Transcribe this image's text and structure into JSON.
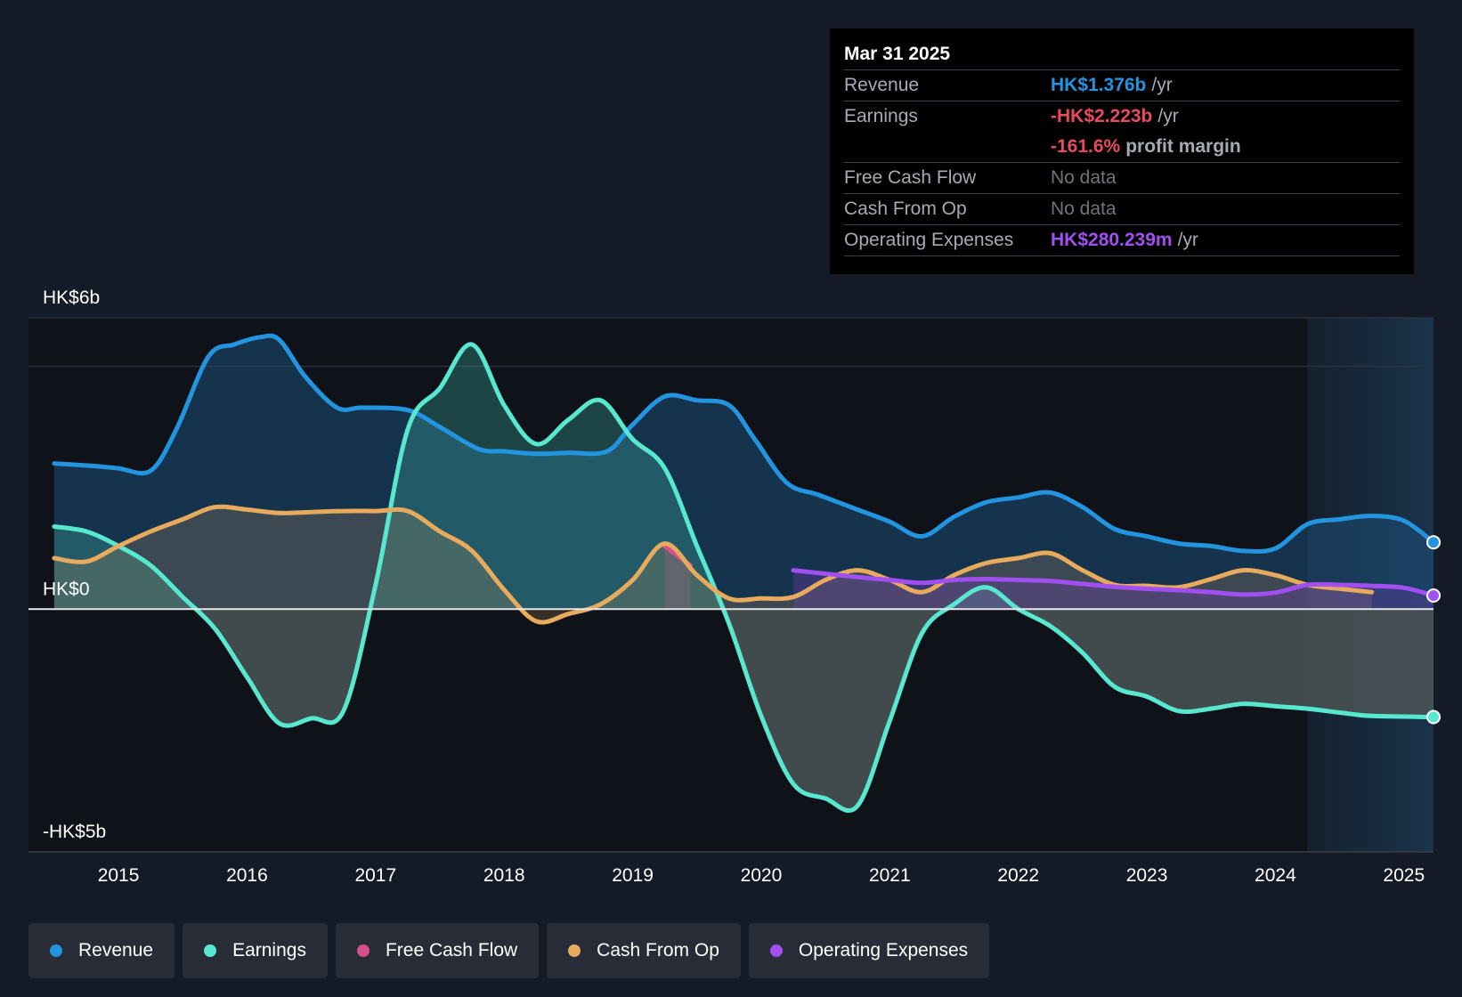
{
  "chart_data": {
    "type": "area",
    "currency": "HK$",
    "y_axis": {
      "top_label": "HK$6b",
      "zero_label": "HK$0",
      "bottom_label": "-HK$5b",
      "ylim": [
        -5,
        6
      ],
      "gridlines": [
        6,
        5,
        0
      ]
    },
    "x_axis": {
      "ticks": [
        "2015",
        "2016",
        "2017",
        "2018",
        "2019",
        "2020",
        "2021",
        "2022",
        "2023",
        "2024",
        "2025"
      ],
      "xlim": [
        2014.3,
        2025.23
      ]
    },
    "forecast_start": 2024.25,
    "series": [
      {
        "name": "Revenue",
        "color": "#2394df",
        "points": [
          [
            2014.5,
            3.0
          ],
          [
            2014.8,
            2.95
          ],
          [
            2015.0,
            2.9
          ],
          [
            2015.25,
            2.85
          ],
          [
            2015.45,
            3.7
          ],
          [
            2015.7,
            5.2
          ],
          [
            2015.9,
            5.45
          ],
          [
            2016.1,
            5.6
          ],
          [
            2016.25,
            5.55
          ],
          [
            2016.45,
            4.8
          ],
          [
            2016.7,
            4.15
          ],
          [
            2016.9,
            4.15
          ],
          [
            2017.25,
            4.1
          ],
          [
            2017.5,
            3.75
          ],
          [
            2017.8,
            3.3
          ],
          [
            2018.0,
            3.25
          ],
          [
            2018.25,
            3.2
          ],
          [
            2018.5,
            3.22
          ],
          [
            2018.8,
            3.25
          ],
          [
            2019.0,
            3.8
          ],
          [
            2019.25,
            4.38
          ],
          [
            2019.5,
            4.3
          ],
          [
            2019.75,
            4.2
          ],
          [
            2019.95,
            3.5
          ],
          [
            2020.2,
            2.6
          ],
          [
            2020.45,
            2.35
          ],
          [
            2020.75,
            2.05
          ],
          [
            2021.0,
            1.8
          ],
          [
            2021.25,
            1.5
          ],
          [
            2021.5,
            1.9
          ],
          [
            2021.75,
            2.2
          ],
          [
            2022.0,
            2.3
          ],
          [
            2022.25,
            2.4
          ],
          [
            2022.5,
            2.1
          ],
          [
            2022.75,
            1.65
          ],
          [
            2023.0,
            1.5
          ],
          [
            2023.25,
            1.35
          ],
          [
            2023.5,
            1.3
          ],
          [
            2023.75,
            1.2
          ],
          [
            2024.0,
            1.25
          ],
          [
            2024.25,
            1.75
          ],
          [
            2024.5,
            1.85
          ],
          [
            2024.75,
            1.92
          ],
          [
            2025.0,
            1.82
          ],
          [
            2025.23,
            1.376
          ]
        ]
      },
      {
        "name": "Earnings",
        "color": "#58e7cf",
        "points": [
          [
            2014.5,
            1.7
          ],
          [
            2014.75,
            1.6
          ],
          [
            2015.0,
            1.3
          ],
          [
            2015.25,
            0.9
          ],
          [
            2015.5,
            0.25
          ],
          [
            2015.75,
            -0.4
          ],
          [
            2016.0,
            -1.4
          ],
          [
            2016.25,
            -2.35
          ],
          [
            2016.5,
            -2.25
          ],
          [
            2016.75,
            -2.1
          ],
          [
            2017.0,
            0.5
          ],
          [
            2017.25,
            3.7
          ],
          [
            2017.5,
            4.55
          ],
          [
            2017.75,
            5.45
          ],
          [
            2018.0,
            4.2
          ],
          [
            2018.25,
            3.4
          ],
          [
            2018.5,
            3.9
          ],
          [
            2018.75,
            4.3
          ],
          [
            2019.0,
            3.5
          ],
          [
            2019.25,
            2.9
          ],
          [
            2019.5,
            1.3
          ],
          [
            2019.75,
            -0.3
          ],
          [
            2020.0,
            -2.2
          ],
          [
            2020.25,
            -3.6
          ],
          [
            2020.5,
            -3.9
          ],
          [
            2020.75,
            -4.05
          ],
          [
            2021.0,
            -2.3
          ],
          [
            2021.25,
            -0.5
          ],
          [
            2021.5,
            0.1
          ],
          [
            2021.75,
            0.45
          ],
          [
            2022.0,
            0.0
          ],
          [
            2022.25,
            -0.35
          ],
          [
            2022.5,
            -0.9
          ],
          [
            2022.75,
            -1.6
          ],
          [
            2023.0,
            -1.8
          ],
          [
            2023.25,
            -2.1
          ],
          [
            2023.5,
            -2.05
          ],
          [
            2023.75,
            -1.95
          ],
          [
            2024.0,
            -2.0
          ],
          [
            2024.25,
            -2.05
          ],
          [
            2024.5,
            -2.13
          ],
          [
            2024.75,
            -2.2
          ],
          [
            2025.23,
            -2.223
          ]
        ]
      },
      {
        "name": "Free Cash Flow",
        "color": "#d94f8c",
        "points": [
          [
            2019.25,
            1.3
          ],
          [
            2019.45,
            0.9
          ]
        ]
      },
      {
        "name": "Cash From Op",
        "color": "#e8aa5c",
        "points": [
          [
            2014.5,
            1.05
          ],
          [
            2014.75,
            0.98
          ],
          [
            2015.0,
            1.3
          ],
          [
            2015.25,
            1.6
          ],
          [
            2015.5,
            1.85
          ],
          [
            2015.75,
            2.1
          ],
          [
            2016.0,
            2.05
          ],
          [
            2016.25,
            1.98
          ],
          [
            2016.5,
            2.0
          ],
          [
            2016.75,
            2.02
          ],
          [
            2017.0,
            2.02
          ],
          [
            2017.25,
            2.02
          ],
          [
            2017.5,
            1.6
          ],
          [
            2017.75,
            1.2
          ],
          [
            2018.0,
            0.4
          ],
          [
            2018.25,
            -0.25
          ],
          [
            2018.5,
            -0.1
          ],
          [
            2018.75,
            0.1
          ],
          [
            2019.0,
            0.6
          ],
          [
            2019.25,
            1.35
          ],
          [
            2019.5,
            0.7
          ],
          [
            2019.75,
            0.22
          ],
          [
            2020.0,
            0.22
          ],
          [
            2020.25,
            0.25
          ],
          [
            2020.5,
            0.6
          ],
          [
            2020.75,
            0.8
          ],
          [
            2021.0,
            0.6
          ],
          [
            2021.25,
            0.35
          ],
          [
            2021.5,
            0.7
          ],
          [
            2021.75,
            0.95
          ],
          [
            2022.0,
            1.05
          ],
          [
            2022.25,
            1.15
          ],
          [
            2022.5,
            0.8
          ],
          [
            2022.75,
            0.5
          ],
          [
            2023.0,
            0.48
          ],
          [
            2023.25,
            0.45
          ],
          [
            2023.5,
            0.62
          ],
          [
            2023.75,
            0.8
          ],
          [
            2024.0,
            0.7
          ],
          [
            2024.25,
            0.5
          ],
          [
            2024.5,
            0.42
          ],
          [
            2024.75,
            0.35
          ]
        ]
      },
      {
        "name": "Operating Expenses",
        "color": "#a14ff0",
        "points": [
          [
            2020.25,
            0.8
          ],
          [
            2020.5,
            0.73
          ],
          [
            2020.75,
            0.66
          ],
          [
            2021.0,
            0.6
          ],
          [
            2021.25,
            0.54
          ],
          [
            2021.5,
            0.6
          ],
          [
            2021.75,
            0.62
          ],
          [
            2022.0,
            0.6
          ],
          [
            2022.25,
            0.58
          ],
          [
            2022.5,
            0.52
          ],
          [
            2022.75,
            0.46
          ],
          [
            2023.0,
            0.42
          ],
          [
            2023.25,
            0.39
          ],
          [
            2023.5,
            0.35
          ],
          [
            2023.75,
            0.3
          ],
          [
            2024.0,
            0.34
          ],
          [
            2024.25,
            0.5
          ],
          [
            2024.5,
            0.5
          ],
          [
            2024.75,
            0.48
          ],
          [
            2025.0,
            0.44
          ],
          [
            2025.23,
            0.28
          ]
        ]
      }
    ]
  },
  "tooltip": {
    "date": "Mar 31 2025",
    "rows": [
      {
        "label": "Revenue",
        "value": "HK$1.376b",
        "suffix": "/yr",
        "color": "#2394df"
      },
      {
        "label": "Earnings",
        "value": "-HK$2.223b",
        "suffix": "/yr",
        "color": "#e84a5f"
      },
      {
        "label": "",
        "value": "-161.6%",
        "suffix": "profit margin",
        "color": "#e84a5f"
      },
      {
        "label": "Free Cash Flow",
        "value": "No data",
        "suffix": "",
        "color": "#6f747c"
      },
      {
        "label": "Cash From Op",
        "value": "No data",
        "suffix": "",
        "color": "#6f747c"
      },
      {
        "label": "Operating Expenses",
        "value": "HK$280.239m",
        "suffix": "/yr",
        "color": "#a14ff0"
      }
    ]
  },
  "legend": [
    {
      "label": "Revenue",
      "color": "#2394df"
    },
    {
      "label": "Earnings",
      "color": "#58e7cf"
    },
    {
      "label": "Free Cash Flow",
      "color": "#d94f8c"
    },
    {
      "label": "Cash From Op",
      "color": "#e8aa5c"
    },
    {
      "label": "Operating Expenses",
      "color": "#a14ff0"
    }
  ]
}
